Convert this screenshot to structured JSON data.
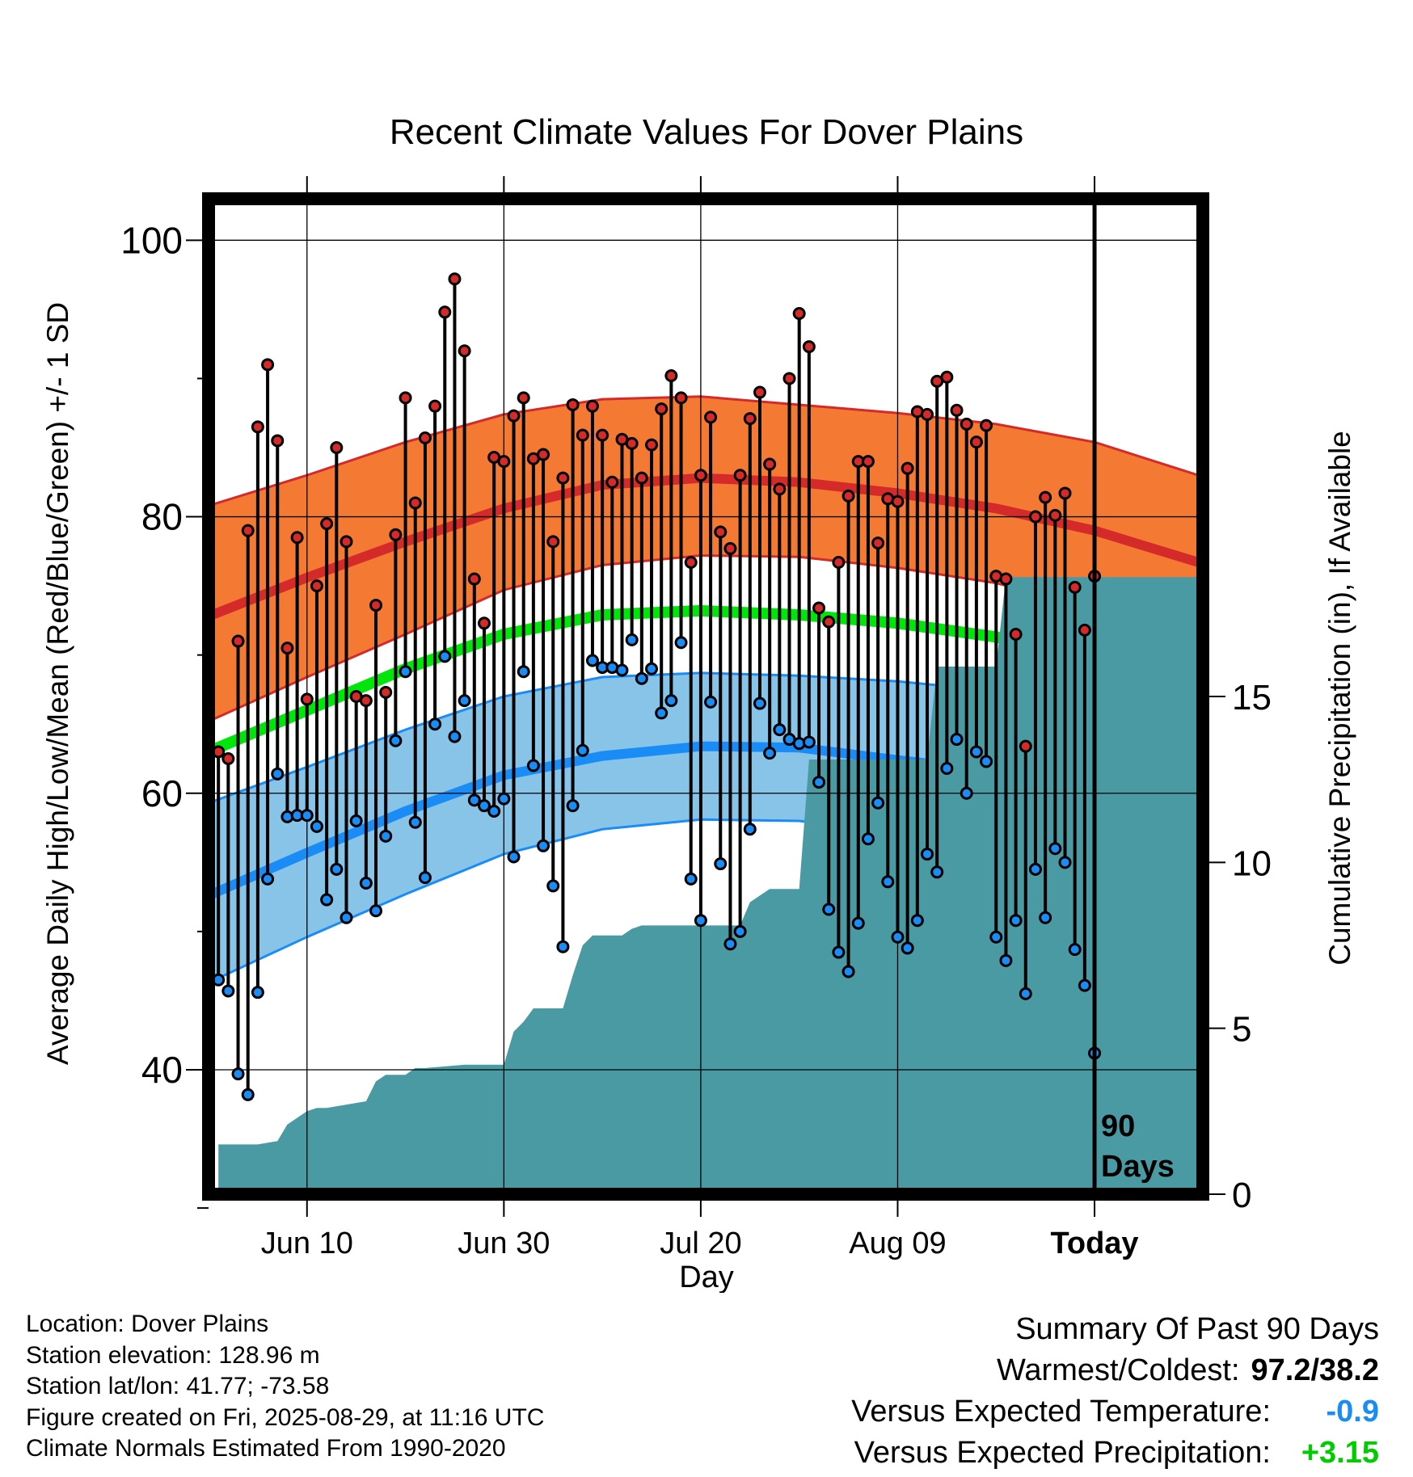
{
  "colors": {
    "high_band": "#f47a33",
    "high_line": "#d42a2a",
    "low_band": "#87c4e8",
    "low_line": "#1a8cf5",
    "mean_line": "#00e60a",
    "precip_fill": "#4a9aa3",
    "high_marker": "#d42a2a",
    "low_marker": "#1a8cf5",
    "temp_value": "#1a8cf5",
    "precip_value": "#00cc00"
  },
  "chart_data": {
    "type": "line",
    "title": "Recent Climate Values For Dover Plains",
    "xlabel": "Day",
    "ylabel": "Average Daily High/Low/Mean (Red/Blue/Green) +/- 1 SD",
    "y2label": "Cumulative Precipitation (in), If Available",
    "ylim": [
      31,
      103
    ],
    "y_ticks": [
      100,
      80,
      60,
      40
    ],
    "y2lim": [
      0,
      30
    ],
    "y2_ticks": [
      15,
      10,
      5,
      0
    ],
    "x_start": "2025-05-31",
    "x_end": "2025-09-09",
    "x_ticks": [
      {
        "date": "2025-06-10",
        "label": "Jun 10"
      },
      {
        "date": "2025-06-30",
        "label": "Jun 30"
      },
      {
        "date": "2025-07-20",
        "label": "Jul 20"
      },
      {
        "date": "2025-08-09",
        "label": "Aug 09"
      },
      {
        "date": "2025-08-29",
        "label": "Today"
      }
    ],
    "today": "2025-08-29",
    "period_label_line1": "90",
    "period_label_line2": "Days",
    "grid": true,
    "normals": {
      "x": [
        "2025-05-31",
        "2025-06-10",
        "2025-06-20",
        "2025-06-30",
        "2025-07-10",
        "2025-07-20",
        "2025-07-30",
        "2025-08-09",
        "2025-08-19",
        "2025-08-29",
        "2025-09-09"
      ],
      "high_mean": [
        72.8,
        75.6,
        78.2,
        80.6,
        82.3,
        82.8,
        82.5,
        81.7,
        80.6,
        79.0,
        76.6
      ],
      "high_plus_sd": [
        80.8,
        83.0,
        85.4,
        87.4,
        88.5,
        88.7,
        88.1,
        87.5,
        86.7,
        85.4,
        82.9
      ],
      "high_minus_sd": [
        65.2,
        68.4,
        71.5,
        74.7,
        76.5,
        77.2,
        77.1,
        76.3,
        75.2,
        73.4,
        70.8
      ],
      "mean": [
        63.0,
        66.0,
        69.0,
        71.5,
        72.9,
        73.2,
        72.9,
        72.3,
        71.3,
        69.7,
        66.9
      ],
      "low_mean": [
        52.6,
        55.7,
        58.7,
        61.3,
        62.7,
        63.4,
        63.3,
        62.4,
        61.6,
        60.0,
        57.1
      ],
      "low_plus_sd": [
        59.3,
        61.9,
        64.6,
        67.0,
        68.4,
        68.7,
        68.5,
        68.1,
        67.4,
        66.2,
        64.0
      ],
      "low_minus_sd": [
        46.3,
        49.6,
        52.7,
        55.6,
        57.4,
        58.1,
        58.0,
        57.1,
        55.9,
        54.0,
        51.1
      ]
    },
    "daily": {
      "start": "2025-06-01",
      "high": [
        63.0,
        62.5,
        71.0,
        79.0,
        86.5,
        91.0,
        85.5,
        70.5,
        78.5,
        66.8,
        75.0,
        79.5,
        85.0,
        78.2,
        67.0,
        66.7,
        73.6,
        67.3,
        78.7,
        88.6,
        81.0,
        85.7,
        88.0,
        94.8,
        97.2,
        92.0,
        75.5,
        72.3,
        84.3,
        84.0,
        87.3,
        88.6,
        84.2,
        84.5,
        78.2,
        82.8,
        88.1,
        85.9,
        88.0,
        85.9,
        82.5,
        85.6,
        85.3,
        82.8,
        85.2,
        87.8,
        90.2,
        88.6,
        76.7,
        83.0,
        87.2,
        78.9,
        77.7,
        83.0,
        87.1,
        89.0,
        83.8,
        82.0,
        90.0,
        94.7,
        92.3,
        73.4,
        72.4,
        76.7,
        81.5,
        84.0,
        84.0,
        78.1,
        81.3,
        81.1,
        83.5,
        87.6,
        87.4,
        89.8,
        90.1,
        87.7,
        86.7,
        85.4,
        86.6,
        75.7,
        75.5,
        71.5,
        63.4,
        80.0,
        81.4,
        80.1,
        81.7,
        74.9,
        71.8,
        75.7
      ],
      "low": [
        46.5,
        45.7,
        39.7,
        38.2,
        45.6,
        53.8,
        61.4,
        58.3,
        58.4,
        58.4,
        57.6,
        52.3,
        54.5,
        51.0,
        58.0,
        53.5,
        51.5,
        56.9,
        63.8,
        68.8,
        57.9,
        53.9,
        65.0,
        69.9,
        64.1,
        66.7,
        59.5,
        59.1,
        58.7,
        59.6,
        55.4,
        68.8,
        62.0,
        56.2,
        53.3,
        48.9,
        59.1,
        63.1,
        69.6,
        69.1,
        69.1,
        68.9,
        71.1,
        68.3,
        69.0,
        65.8,
        66.7,
        70.9,
        53.8,
        50.8,
        66.6,
        54.9,
        49.1,
        50.0,
        57.4,
        66.5,
        62.9,
        64.6,
        63.9,
        63.6,
        63.7,
        60.8,
        51.6,
        48.5,
        47.1,
        50.6,
        56.7,
        59.3,
        53.6,
        49.6,
        48.8,
        50.8,
        55.6,
        54.3,
        61.8,
        63.9,
        60.0,
        63.0,
        62.3,
        49.6,
        47.9,
        50.8,
        45.5,
        54.5,
        51.0,
        56.0,
        55.0,
        48.7,
        46.1,
        41.2
      ]
    },
    "precip": {
      "x": [
        "2025-06-01",
        "2025-06-05",
        "2025-06-07",
        "2025-06-08",
        "2025-06-09",
        "2025-06-10",
        "2025-06-11",
        "2025-06-12",
        "2025-06-16",
        "2025-06-17",
        "2025-06-18",
        "2025-06-20",
        "2025-06-21",
        "2025-06-22",
        "2025-06-26",
        "2025-06-30",
        "2025-07-01",
        "2025-07-02",
        "2025-07-03",
        "2025-07-06",
        "2025-07-07",
        "2025-07-08",
        "2025-07-09",
        "2025-07-12",
        "2025-07-13",
        "2025-07-14",
        "2025-07-24",
        "2025-07-25",
        "2025-07-26",
        "2025-07-27",
        "2025-07-30",
        "2025-07-31",
        "2025-08-12",
        "2025-08-13",
        "2025-08-19",
        "2025-08-20",
        "2025-09-09"
      ],
      "cumulative": [
        1.5,
        1.5,
        1.6,
        2.1,
        2.3,
        2.5,
        2.6,
        2.6,
        2.8,
        3.4,
        3.6,
        3.6,
        3.8,
        3.8,
        3.9,
        3.9,
        4.9,
        5.2,
        5.6,
        5.6,
        6.6,
        7.5,
        7.8,
        7.8,
        8.0,
        8.1,
        8.1,
        8.8,
        9.0,
        9.2,
        9.2,
        13.1,
        13.1,
        15.9,
        15.9,
        18.6,
        18.6
      ]
    }
  },
  "info": {
    "location": "Location: Dover Plains",
    "elevation": "Station elevation: 128.96 m",
    "latlon": "Station lat/lon: 41.77; -73.58",
    "created": "Figure created on Fri, 2025-08-29, at 11:16 UTC",
    "normals": "Climate Normals Estimated From 1990-2020"
  },
  "summary": {
    "title": "Summary Of Past 90 Days",
    "warmest_coldest_label": "Warmest/Coldest:",
    "warmest_coldest_value": "97.2/38.2",
    "temp_label": "Versus Expected Temperature:",
    "temp_value": "-0.9",
    "precip_label": "Versus Expected Precipitation:",
    "precip_value": "+3.15"
  }
}
